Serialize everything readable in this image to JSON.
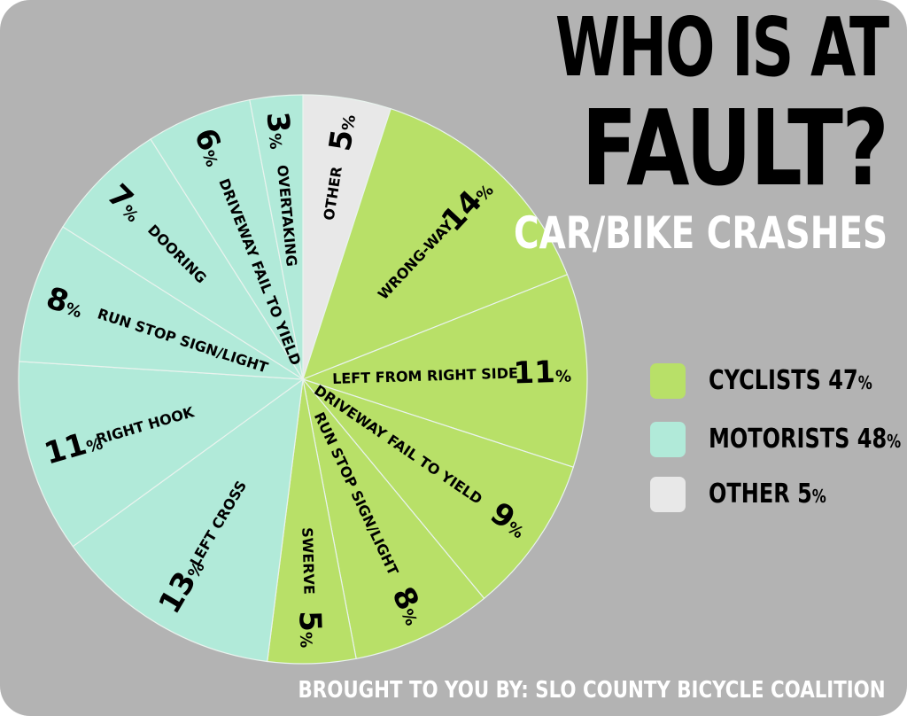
{
  "title_line1": "WHO IS AT",
  "title_line2": "FAULT?",
  "subtitle": "CAR/BIKE CRASHES",
  "footer": "BROUGHT TO YOU BY: SLO COUNTY BICYCLE COALITION",
  "legend": [
    {
      "label": "CYCLISTS",
      "value": "47",
      "unit": "%",
      "color": "#b8e068"
    },
    {
      "label": "MOTORISTS",
      "value": "48",
      "unit": "%",
      "color": "#b1ead9"
    },
    {
      "label": "OTHER",
      "value": "5",
      "unit": "%",
      "color": "#e8e8e8"
    }
  ],
  "chart_data": {
    "type": "pie",
    "unit": "%",
    "slices": [
      {
        "label": "OTHER",
        "value": 5,
        "group": "other",
        "color": "#e8e8e8"
      },
      {
        "label": "WRONG-WAY",
        "value": 14,
        "group": "cyclists",
        "color": "#b8e068"
      },
      {
        "label": "LEFT FROM RIGHT SIDE",
        "value": 11,
        "group": "cyclists",
        "color": "#b8e068"
      },
      {
        "label": "DRIVEWAY FAIL TO YIELD",
        "value": 9,
        "group": "cyclists",
        "color": "#b8e068"
      },
      {
        "label": "RUN STOP SIGN/LIGHT",
        "value": 8,
        "group": "cyclists",
        "color": "#b8e068"
      },
      {
        "label": "SWERVE",
        "value": 5,
        "group": "cyclists",
        "color": "#b8e068"
      },
      {
        "label": "LEFT CROSS",
        "value": 13,
        "group": "motorists",
        "color": "#b1ead9"
      },
      {
        "label": "RIGHT HOOK",
        "value": 11,
        "group": "motorists",
        "color": "#b1ead9"
      },
      {
        "label": "RUN STOP SIGN/LIGHT",
        "value": 8,
        "group": "motorists",
        "color": "#b1ead9"
      },
      {
        "label": "DOORING",
        "value": 7,
        "group": "motorists",
        "color": "#b1ead9"
      },
      {
        "label": "DRIVEWAY FAIL TO YIELD",
        "value": 6,
        "group": "motorists",
        "color": "#b1ead9"
      },
      {
        "label": "OVERTAKING",
        "value": 3,
        "group": "motorists",
        "color": "#b1ead9"
      }
    ],
    "start_direction": "12 o'clock",
    "direction": "clockwise",
    "legend_position": "right"
  }
}
